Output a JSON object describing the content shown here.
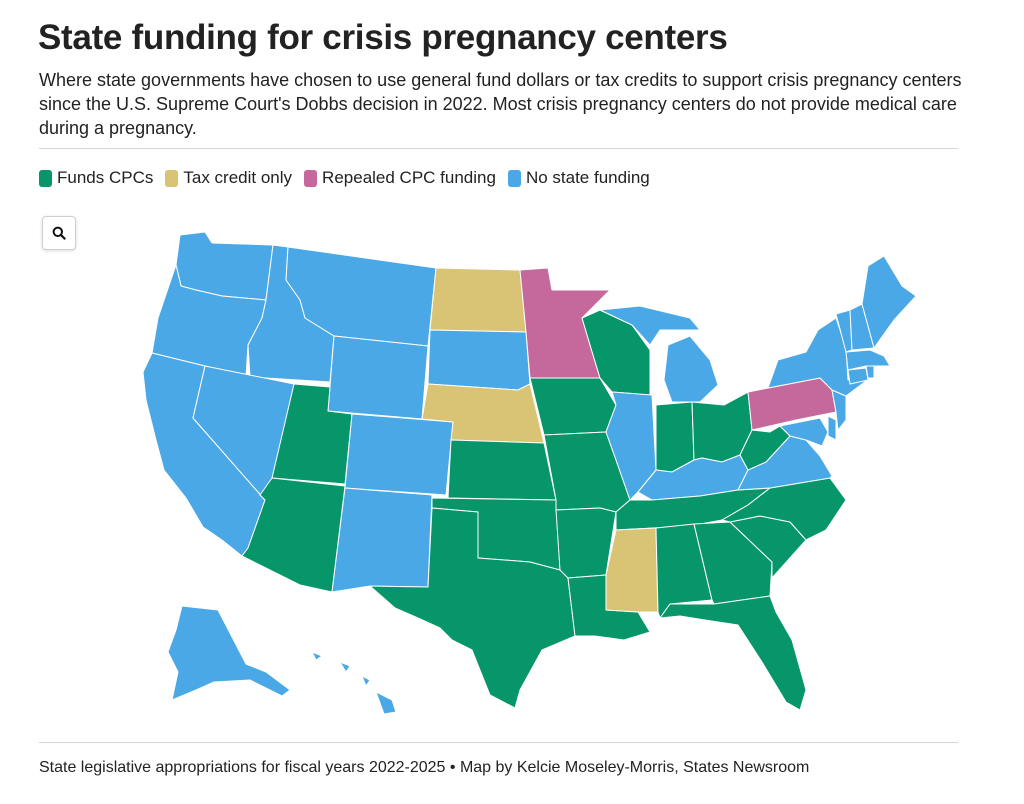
{
  "header": {
    "title": "State funding for crisis pregnancy centers",
    "subtitle": "Where state governments have chosen to use general fund dollars or tax credits to support crisis pregnancy centers since the U.S. Supreme Court's Dobbs decision in 2022. Most crisis pregnancy centers do not provide medical care during a pregnancy."
  },
  "legend": [
    {
      "key": "funds",
      "label": "Funds CPCs",
      "color": "#079669"
    },
    {
      "key": "tax",
      "label": "Tax credit only",
      "color": "#d8c474"
    },
    {
      "key": "repealed",
      "label": "Repealed CPC funding",
      "color": "#c5699d"
    },
    {
      "key": "none",
      "label": "No state funding",
      "color": "#4aa8e6"
    }
  ],
  "zoom_button": {
    "icon": "search-icon"
  },
  "map_data": {
    "type": "choropleth",
    "region": "United States",
    "categories": {
      "funds": [
        "UT",
        "AZ",
        "TX",
        "KS",
        "OK",
        "IA",
        "MO",
        "AR",
        "LA",
        "WI",
        "IN",
        "OH",
        "WV",
        "TN",
        "AL",
        "GA",
        "FL",
        "SC",
        "NC"
      ],
      "tax": [
        "ND",
        "NE",
        "MS"
      ],
      "repealed": [
        "MN",
        "PA"
      ],
      "none": [
        "WA",
        "OR",
        "CA",
        "ID",
        "NV",
        "MT",
        "WY",
        "CO",
        "NM",
        "SD",
        "IL",
        "MI",
        "KY",
        "VA",
        "MD",
        "DE",
        "NJ",
        "NY",
        "CT",
        "RI",
        "MA",
        "VT",
        "NH",
        "ME",
        "AK",
        "HI"
      ]
    }
  },
  "footer": {
    "source": "State legislative appropriations for fiscal years 2022-2025 • Map by Kelcie Moseley-Morris, States Newsroom"
  }
}
